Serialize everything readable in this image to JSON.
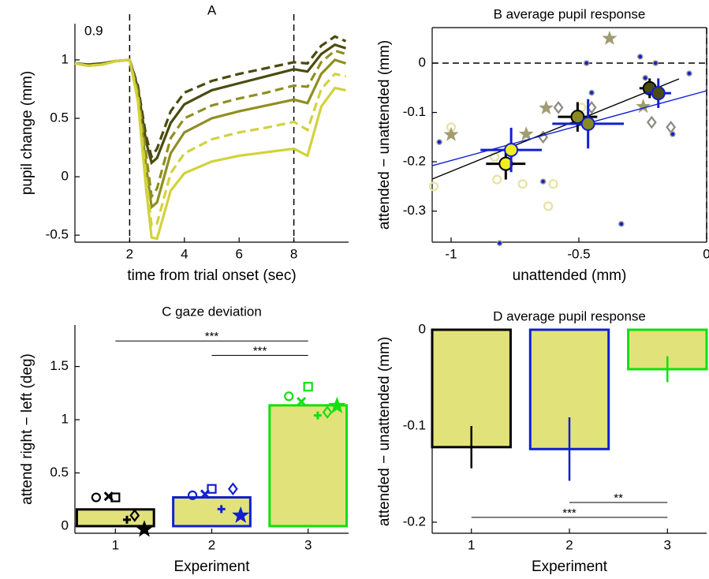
{
  "chart_data": [
    {
      "type": "line",
      "title": "A",
      "xlabel": "time from trial onset (sec)",
      "ylabel": "pupil change (mm)",
      "annotation": "0.9",
      "xlim": [
        0,
        10
      ],
      "ylim": [
        -0.56,
        1.31
      ],
      "xticks": [
        2,
        4,
        6,
        8
      ],
      "yticks": [
        -0.5,
        0,
        0.5,
        1
      ],
      "vlines": [
        2,
        8
      ],
      "box": false,
      "x": [
        0,
        0.5,
        1,
        1.5,
        2,
        2.3,
        2.6,
        2.8,
        3,
        3.5,
        4,
        5,
        6,
        7,
        8,
        8.5,
        9,
        9.5,
        9.9
      ],
      "series": [
        {
          "color": "#4b4b0e",
          "dashed": true,
          "values": [
            0.97,
            0.96,
            0.97,
            0.99,
            1.0,
            0.78,
            0.35,
            0.17,
            0.24,
            0.56,
            0.72,
            0.82,
            0.88,
            0.93,
            0.98,
            0.97,
            1.12,
            1.2,
            1.16
          ]
        },
        {
          "color": "#4b4b0e",
          "dashed": false,
          "values": [
            0.97,
            0.96,
            0.97,
            0.99,
            1.0,
            0.76,
            0.3,
            0.12,
            0.16,
            0.46,
            0.62,
            0.74,
            0.8,
            0.86,
            0.92,
            0.9,
            1.05,
            1.13,
            1.1
          ]
        },
        {
          "color": "#8f8f22",
          "dashed": true,
          "values": [
            0.97,
            0.95,
            0.96,
            0.99,
            1.0,
            0.73,
            0.2,
            -0.17,
            -0.1,
            0.33,
            0.5,
            0.61,
            0.67,
            0.72,
            0.78,
            0.77,
            0.98,
            1.08,
            1.05
          ]
        },
        {
          "color": "#8f8f22",
          "dashed": false,
          "values": [
            0.97,
            0.95,
            0.96,
            0.99,
            1.0,
            0.7,
            0.1,
            -0.26,
            -0.22,
            0.2,
            0.38,
            0.5,
            0.56,
            0.61,
            0.66,
            0.63,
            0.88,
            1.0,
            0.97
          ]
        },
        {
          "color": "#d2d23c",
          "dashed": true,
          "values": [
            0.97,
            0.95,
            0.96,
            0.99,
            1.0,
            0.68,
            0.0,
            -0.42,
            -0.4,
            0.03,
            0.2,
            0.32,
            0.38,
            0.42,
            0.47,
            0.4,
            0.75,
            0.88,
            0.86
          ]
        },
        {
          "color": "#d2d23c",
          "dashed": false,
          "values": [
            0.97,
            0.95,
            0.96,
            0.99,
            1.0,
            0.65,
            -0.1,
            -0.52,
            -0.53,
            -0.12,
            0.03,
            0.13,
            0.18,
            0.21,
            0.24,
            0.18,
            0.6,
            0.76,
            0.74
          ]
        }
      ]
    },
    {
      "type": "scatter",
      "title": "B average pupil response",
      "xlabel": "unattended (mm)",
      "ylabel": "attended − unattended (mm)",
      "xlim": [
        -1.074,
        0
      ],
      "ylim": [
        -0.363,
        0.072
      ],
      "xticks": [
        -1,
        -0.5,
        0
      ],
      "yticks": [
        -0.3,
        -0.2,
        -0.1,
        0
      ],
      "hline": 0,
      "vline": 0,
      "box": true,
      "series": [
        {
          "marker": "o",
          "color": "#e6e2a0",
          "x": [
            -1.0,
            -1.068,
            -0.82,
            -0.72,
            -0.62,
            -0.49,
            -0.6,
            -0.83
          ],
          "y": [
            -0.13,
            -0.25,
            -0.236,
            -0.245,
            -0.29,
            -0.09,
            -0.245,
            -0.19
          ]
        },
        {
          "marker": "*",
          "color": "#a09c70",
          "x": [
            -0.38,
            -0.706,
            -0.628,
            -0.248,
            -1.0
          ],
          "y": [
            0.05,
            -0.144,
            -0.091,
            -0.088,
            -0.145
          ]
        },
        {
          "marker": "d",
          "color": "#8a8a80",
          "x": [
            -0.64,
            -0.215,
            -0.14,
            -0.58,
            -0.45
          ],
          "y": [
            -0.15,
            -0.12,
            -0.13,
            -0.09,
            -0.09
          ]
        },
        {
          "marker": "dot",
          "color": "#1020d0",
          "x": [
            -1.046,
            -0.47,
            -0.26,
            -0.2,
            -0.81,
            -0.334,
            -0.133,
            -0.068,
            -0.64,
            -0.24,
            -0.45
          ],
          "y": [
            -0.16,
            0.0,
            0.013,
            0.0,
            -0.365,
            -0.326,
            -0.144,
            -0.021,
            -0.24,
            -0.03,
            -0.06
          ]
        }
      ],
      "means": {
        "x": [
          -0.786,
          -0.765,
          -0.505,
          -0.464,
          -0.223,
          -0.189
        ],
        "y": [
          -0.204,
          -0.176,
          -0.109,
          -0.123,
          -0.051,
          -0.061
        ],
        "xerr": [
          0.077,
          0.12,
          0.077,
          0.14,
          0.04,
          0.05
        ],
        "yerr": [
          0.032,
          0.045,
          0.03,
          0.05,
          0.02,
          0.03
        ],
        "fill": [
          "#f0ee20",
          "#f0ee20",
          "#8a8a20",
          "#8a8a20",
          "#4b4b0e",
          "#4b4b0e"
        ],
        "edge": [
          "#000000",
          "#1020d0",
          "#000000",
          "#1020d0",
          "#000000",
          "#1020d0"
        ]
      },
      "lines": [
        {
          "color": "#000000",
          "x": [
            -1.074,
            -0.108
          ],
          "y": [
            -0.235,
            -0.032
          ]
        },
        {
          "color": "#1020d0",
          "x": [
            -1.074,
            0
          ],
          "y": [
            -0.208,
            -0.056
          ]
        }
      ]
    },
    {
      "type": "bar",
      "title": "C gaze deviation",
      "xlabel": "Experiment",
      "ylabel": "attend right − left (deg)",
      "xlim": [
        0.58,
        3.42
      ],
      "ylim": [
        -0.067,
        1.89
      ],
      "xticks": [
        1,
        2,
        3
      ],
      "yticks": [
        0,
        0.5,
        1,
        1.5
      ],
      "box": false,
      "x": [
        1,
        2,
        3
      ],
      "values": [
        0.157,
        0.27,
        1.135
      ],
      "color": "#e2e27a",
      "edge_colors": [
        "#000000",
        "#1020d0",
        "#10e010"
      ],
      "markers": [
        "o",
        "x",
        "s",
        "+",
        "d",
        "*"
      ],
      "points": [
        {
          "x": [
            0.8,
            0.93,
            1.0,
            1.12,
            1.2,
            1.3
          ],
          "y": [
            0.27,
            0.28,
            0.27,
            0.06,
            0.1,
            -0.03
          ]
        },
        {
          "x": [
            1.8,
            1.93,
            2.0,
            2.1,
            2.22,
            2.3
          ],
          "y": [
            0.29,
            0.3,
            0.35,
            0.16,
            0.35,
            0.1
          ]
        },
        {
          "x": [
            2.8,
            2.93,
            3.0,
            3.1,
            3.2,
            3.3
          ],
          "y": [
            1.22,
            1.17,
            1.31,
            1.04,
            1.07,
            1.13
          ]
        }
      ],
      "significance": [
        {
          "x1": 1,
          "x2": 3,
          "y": 1.74,
          "label": "***"
        },
        {
          "x1": 2,
          "x2": 3,
          "y": 1.605,
          "label": "***"
        }
      ]
    },
    {
      "type": "bar",
      "title": "D average pupil response",
      "xlabel": "Experiment",
      "ylabel": "attended − unattended (mm)",
      "xlim": [
        0.6,
        3.4
      ],
      "ylim": [
        -0.2115,
        0
      ],
      "xticks": [
        1,
        2,
        3
      ],
      "yticks": [
        -0.2,
        -0.1,
        0
      ],
      "box": false,
      "x": [
        1,
        2,
        3
      ],
      "values": [
        -0.122,
        -0.124,
        -0.041
      ],
      "errors": [
        0.022,
        0.033,
        0.0135
      ],
      "color": "#e2e27a",
      "edge_colors": [
        "#000000",
        "#1020d0",
        "#10e010"
      ],
      "significance": [
        {
          "x1": 1,
          "x2": 3,
          "y": -0.195,
          "label": "***"
        },
        {
          "x1": 2,
          "x2": 3,
          "y": -0.1795,
          "label": "**"
        }
      ]
    }
  ]
}
